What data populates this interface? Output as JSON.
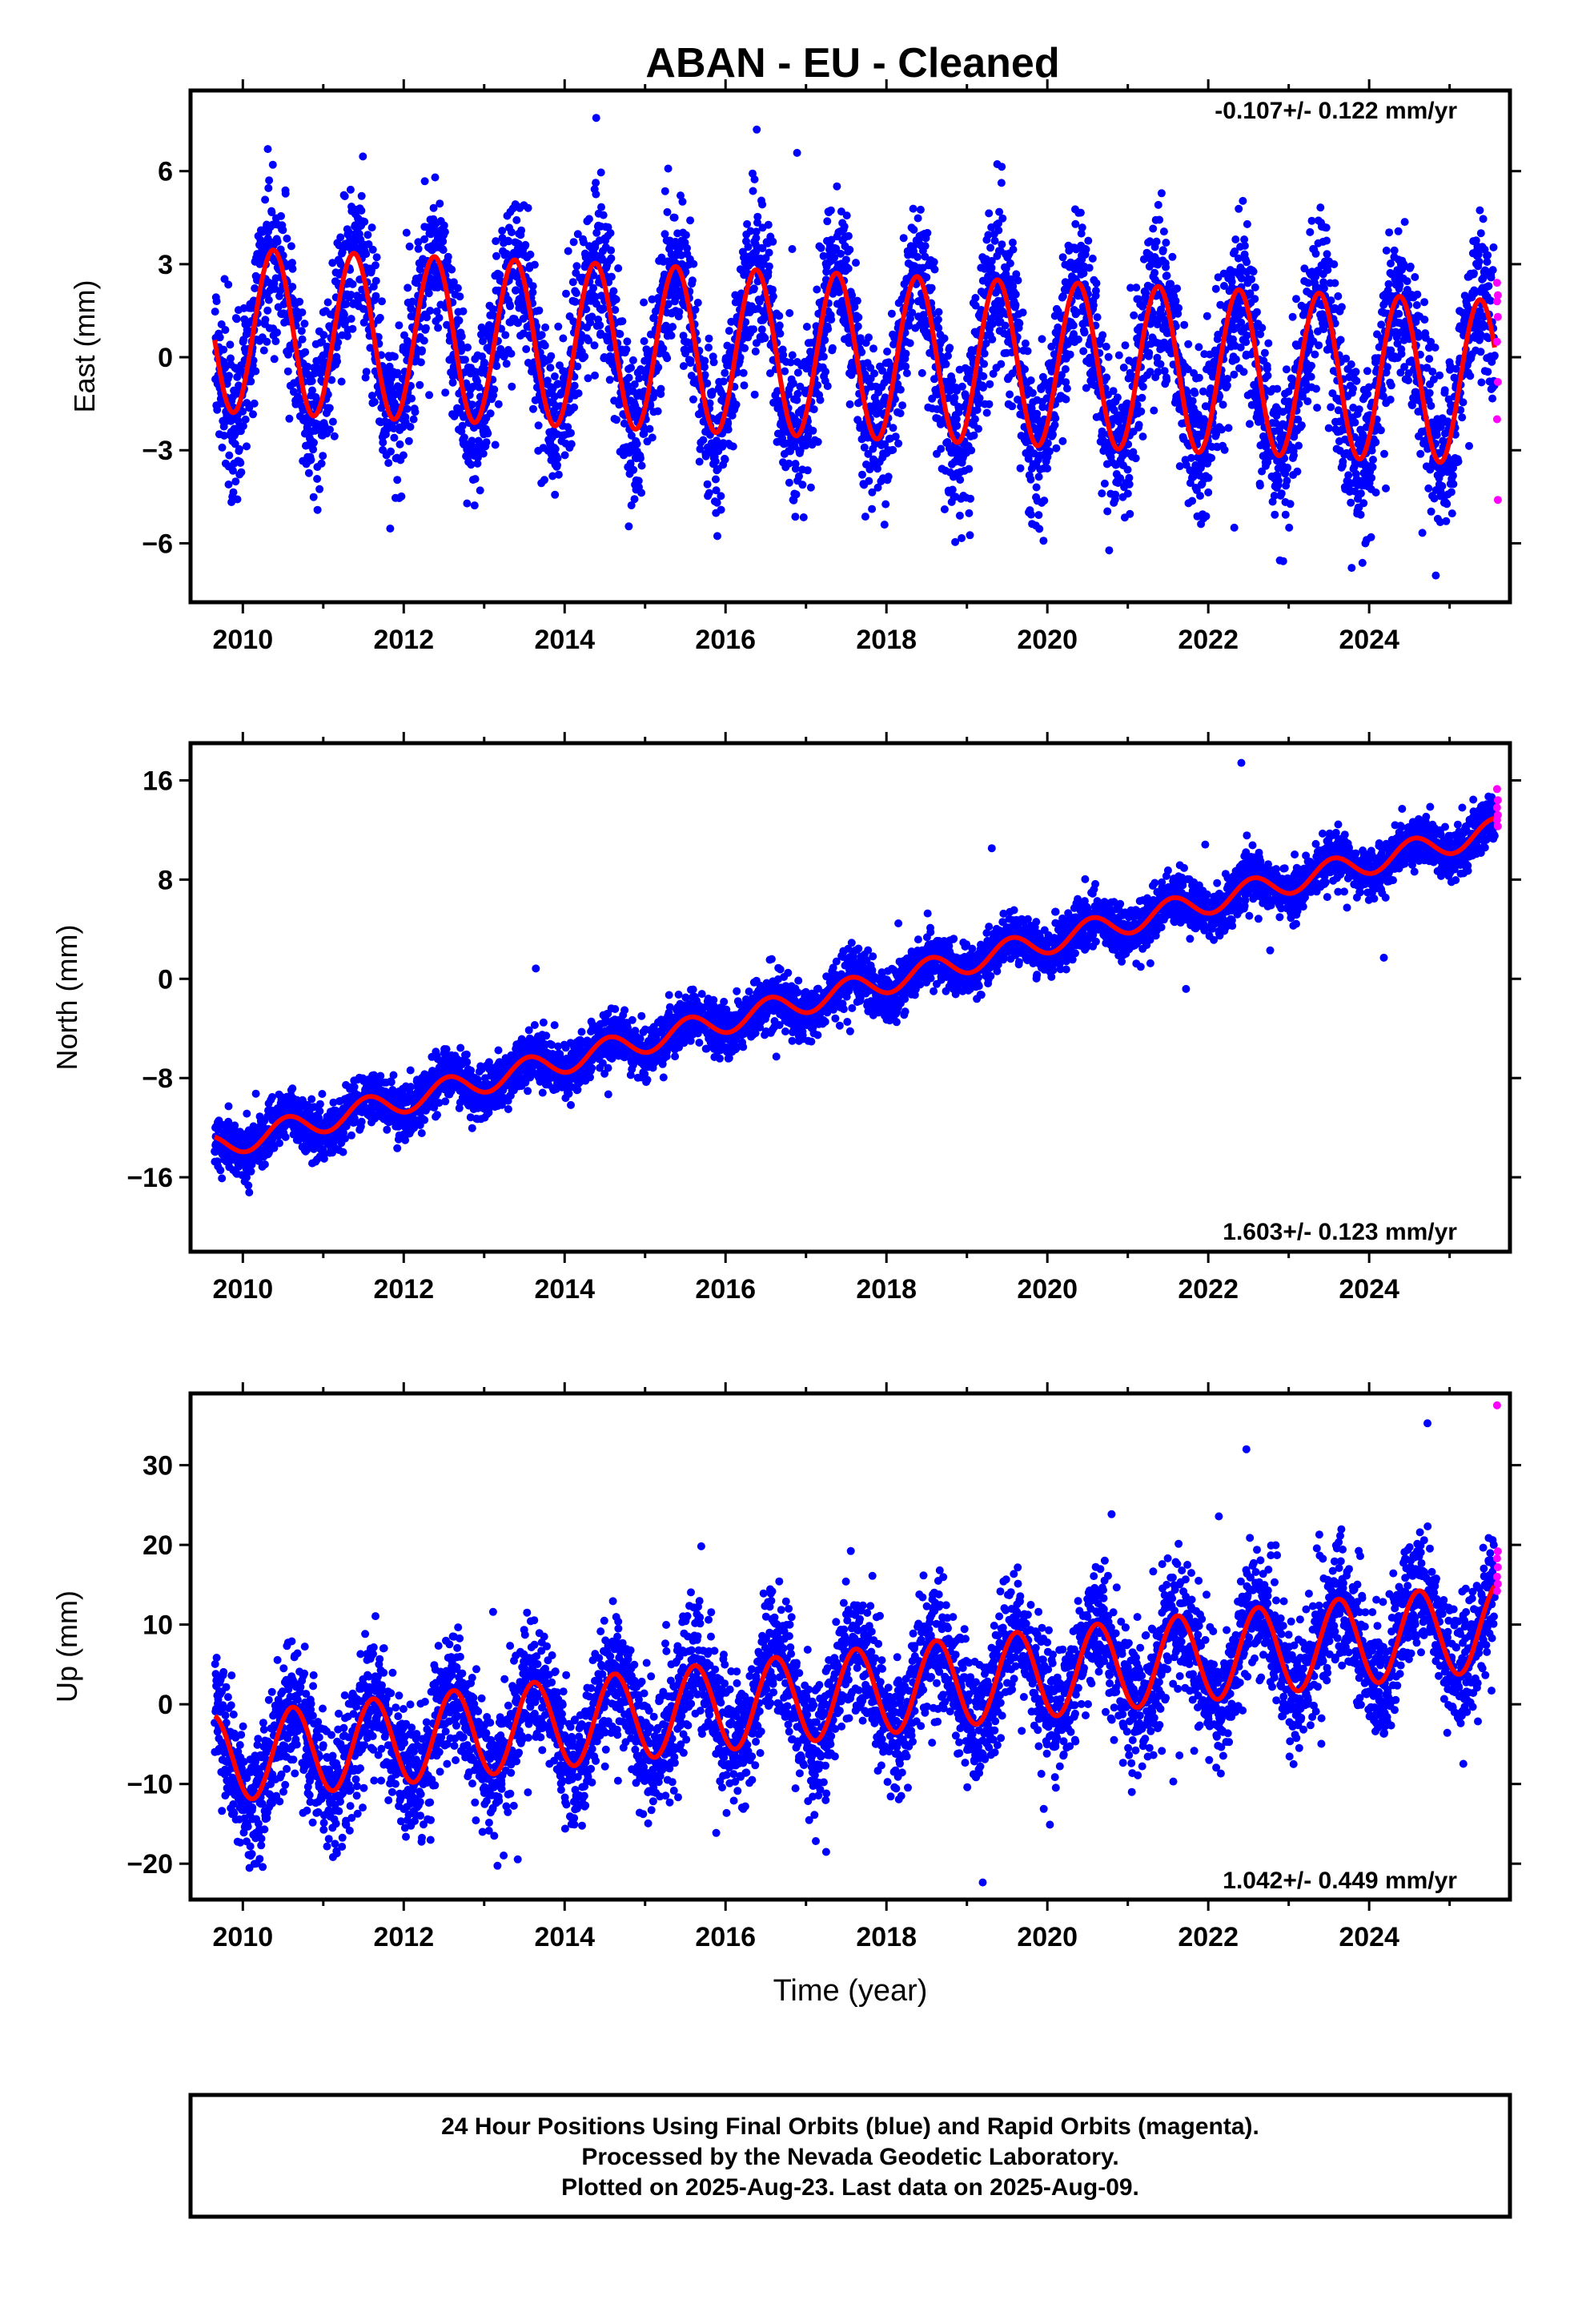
{
  "figure": {
    "title": "ABAN  - EU - Cleaned",
    "xlabel": "Time (year)",
    "footer": {
      "line1": "24 Hour Positions Using Final Orbits (blue) and Rapid Orbits (magenta).",
      "line2": "Processed by the Nevada Geodetic Laboratory.",
      "line3": "Plotted on 2025-Aug-23. Last data on 2025-Aug-09."
    },
    "colors": {
      "final": "#0000ff",
      "rapid": "#ff00ff",
      "model": "#ff0000",
      "frame": "#000000"
    }
  },
  "chart_data": [
    {
      "type": "scatter",
      "component": "East",
      "ylabel": "East (mm)",
      "rate_label": "-0.107+/- 0.122 mm/yr",
      "xlim": [
        2009.35,
        2025.75
      ],
      "ylim": [
        -7.9,
        8.6
      ],
      "x_ticks": [
        2010,
        2012,
        2014,
        2016,
        2018,
        2020,
        2022,
        2024
      ],
      "x_tick_labels": [
        "2010",
        "2012",
        "2014",
        "2016",
        "2018",
        "2020",
        "2022",
        "2024"
      ],
      "y_ticks": [
        -6,
        -3,
        0,
        3,
        6
      ],
      "y_tick_labels": [
        "−6",
        "−3",
        "0",
        "3",
        "6"
      ],
      "data_start": 2009.65,
      "data_end": 2025.56,
      "model": {
        "offset": 0.85,
        "trend": -0.107,
        "annual_amplitude": 2.65,
        "annual_peak_phase": 0.38,
        "amplitude_change_per_year": -0.0
      },
      "scatter_std": 1.25,
      "rapid_points": [
        2.4,
        2.0,
        1.8,
        1.3,
        0.5,
        -0.8,
        -2.0,
        -4.6
      ]
    },
    {
      "type": "scatter",
      "component": "North",
      "ylabel": "North (mm)",
      "rate_label": "1.603+/- 0.123 mm/yr",
      "xlim": [
        2009.35,
        2025.75
      ],
      "ylim": [
        -22,
        19
      ],
      "x_ticks": [
        2010,
        2012,
        2014,
        2016,
        2018,
        2020,
        2022,
        2024
      ],
      "x_tick_labels": [
        "2010",
        "2012",
        "2014",
        "2016",
        "2018",
        "2020",
        "2022",
        "2024"
      ],
      "y_ticks": [
        -16,
        -8,
        0,
        8,
        16
      ],
      "y_tick_labels": [
        "−16",
        "−8",
        "0",
        "8",
        "16"
      ],
      "data_start": 2009.65,
      "data_end": 2025.56,
      "model": {
        "offset": -13.0,
        "trend": 1.603,
        "annual_amplitude": 1.0,
        "annual_peak_phase": 0.55,
        "amplitude_change_per_year": 0.0
      },
      "scatter_std": 1.05,
      "rapid_points": [
        15.3,
        14.4,
        13.8,
        13.2,
        12.8,
        12.3
      ]
    },
    {
      "type": "scatter",
      "component": "Up",
      "ylabel": "Up (mm)",
      "rate_label": "1.042+/- 0.449 mm/yr",
      "xlim": [
        2009.35,
        2025.75
      ],
      "ylim": [
        -24.5,
        39
      ],
      "x_ticks": [
        2010,
        2012,
        2014,
        2016,
        2018,
        2020,
        2022,
        2024
      ],
      "x_tick_labels": [
        "2010",
        "2012",
        "2014",
        "2016",
        "2018",
        "2020",
        "2022",
        "2024"
      ],
      "y_ticks": [
        -20,
        -10,
        0,
        10,
        20,
        30
      ],
      "y_tick_labels": [
        "−20",
        "−10",
        "0",
        "10",
        "20",
        "30"
      ],
      "data_start": 2009.65,
      "data_end": 2025.56,
      "model": {
        "offset": -6.5,
        "trend": 1.042,
        "annual_amplitude": 5.5,
        "annual_peak_phase": 0.62,
        "amplitude_change_per_year": 0.0
      },
      "scatter_std": 4.0,
      "rapid_points": [
        37.5,
        19.2,
        18.3,
        17.2,
        16.0,
        15.1,
        14.2
      ]
    }
  ]
}
